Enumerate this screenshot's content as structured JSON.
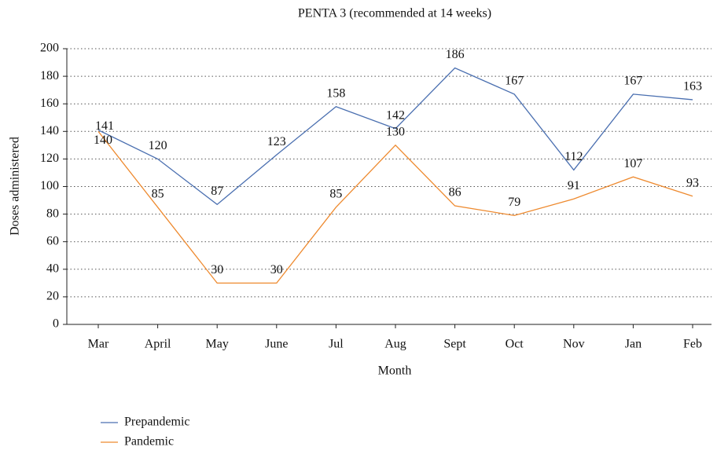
{
  "chart_data": {
    "type": "line",
    "title": "PENTA 3 (recommended at 14 weeks)",
    "x_label": "Month",
    "y_label": "Doses administered",
    "categories": [
      "Mar",
      "April",
      "May",
      "June",
      "Jul",
      "Aug",
      "Sept",
      "Oct",
      "Nov",
      "Jan",
      "Feb"
    ],
    "series": [
      {
        "name": "Prepandemic",
        "color": "#4a6fb0",
        "values": [
          141,
          120,
          87,
          123,
          158,
          142,
          186,
          167,
          112,
          167,
          163
        ]
      },
      {
        "name": "Pandemic",
        "color": "#ee8a2f",
        "values": [
          140,
          85,
          30,
          30,
          85,
          130,
          86,
          79,
          91,
          107,
          93
        ]
      }
    ],
    "ylim": [
      0,
      200
    ],
    "yticks": [
      0,
      20,
      40,
      60,
      80,
      100,
      120,
      140,
      160,
      180,
      200
    ],
    "grid": true,
    "legend": "bottom-left"
  }
}
